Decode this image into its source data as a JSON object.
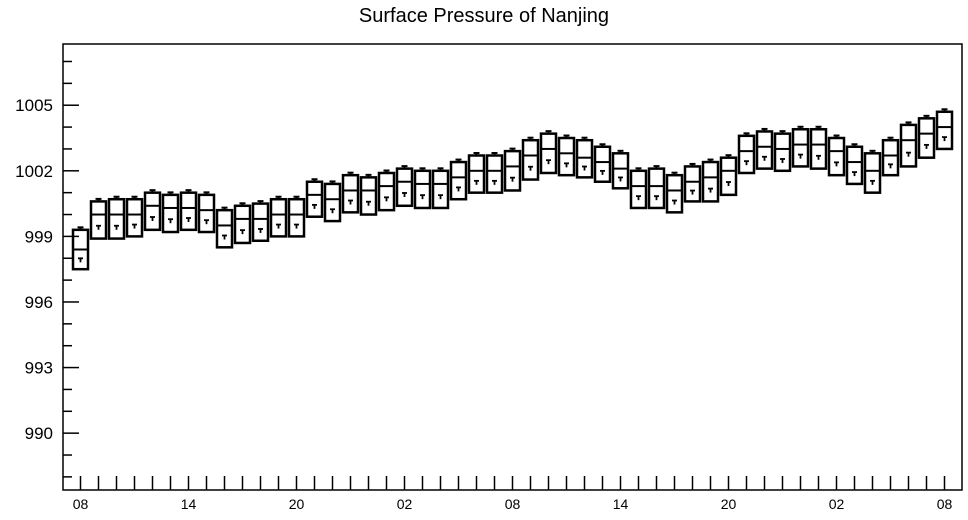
{
  "chart_data": {
    "type": "boxplot",
    "title": "Surface Pressure of Nanjing",
    "xlabel": "",
    "ylabel": "",
    "ylim": [
      987.4,
      1007.8
    ],
    "yticks": [
      990,
      993,
      996,
      999,
      1002,
      1005
    ],
    "yticklabels": [
      "990",
      "993",
      "996",
      "999",
      "1002",
      "1005"
    ],
    "xticklabels": [
      "08",
      "14",
      "20",
      "02",
      "08",
      "14",
      "20",
      "02",
      "08"
    ],
    "xtick_index_step": 6,
    "grid": false,
    "legend": "none",
    "series": [
      {
        "box": [
          [
            997.5,
            998.4,
            999.3
          ],
          [
            998.9,
            1000.0,
            1000.6
          ],
          [
            998.9,
            1000.0,
            1000.7
          ],
          [
            999.0,
            1000.0,
            1000.7
          ],
          [
            999.3,
            1000.4,
            1001.0
          ],
          [
            999.2,
            1000.3,
            1000.9
          ],
          [
            999.3,
            1000.3,
            1001.0
          ],
          [
            999.2,
            1000.2,
            1000.9
          ],
          [
            998.5,
            999.5,
            1000.2
          ],
          [
            998.7,
            999.8,
            1000.4
          ],
          [
            998.8,
            999.8,
            1000.5
          ],
          [
            999.0,
            1000.0,
            1000.7
          ],
          [
            999.0,
            1000.0,
            1000.7
          ],
          [
            999.9,
            1000.9,
            1001.5
          ],
          [
            999.7,
            1000.7,
            1001.4
          ],
          [
            1000.1,
            1001.1,
            1001.8
          ],
          [
            1000.0,
            1001.1,
            1001.7
          ],
          [
            1000.2,
            1001.3,
            1001.9
          ],
          [
            1000.4,
            1001.5,
            1002.1
          ],
          [
            1000.3,
            1001.4,
            1002.0
          ],
          [
            1000.3,
            1001.4,
            1002.0
          ],
          [
            1000.7,
            1001.7,
            1002.4
          ],
          [
            1001.0,
            1002.0,
            1002.7
          ],
          [
            1001.0,
            1002.0,
            1002.7
          ],
          [
            1001.1,
            1002.2,
            1002.9
          ],
          [
            1001.6,
            1002.7,
            1003.4
          ],
          [
            1001.9,
            1003.0,
            1003.7
          ],
          [
            1001.8,
            1002.8,
            1003.5
          ],
          [
            1001.7,
            1002.6,
            1003.4
          ],
          [
            1001.5,
            1002.4,
            1003.1
          ],
          [
            1001.2,
            1002.1,
            1002.8
          ],
          [
            1000.3,
            1001.3,
            1002.0
          ],
          [
            1000.3,
            1001.3,
            1002.1
          ],
          [
            1000.1,
            1001.1,
            1001.8
          ],
          [
            1000.6,
            1001.5,
            1002.2
          ],
          [
            1000.6,
            1001.7,
            1002.4
          ],
          [
            1000.9,
            1002.0,
            1002.6
          ],
          [
            1001.9,
            1002.9,
            1003.6
          ],
          [
            1002.1,
            1003.1,
            1003.8
          ],
          [
            1002.0,
            1003.0,
            1003.7
          ],
          [
            1002.2,
            1003.2,
            1003.9
          ],
          [
            1002.1,
            1003.2,
            1003.9
          ],
          [
            1001.8,
            1002.9,
            1003.5
          ],
          [
            1001.4,
            1002.4,
            1003.1
          ],
          [
            1001.0,
            1002.0,
            1002.8
          ],
          [
            1001.8,
            1002.7,
            1003.4
          ],
          [
            1002.2,
            1003.4,
            1004.1
          ],
          [
            1002.6,
            1003.7,
            1004.4
          ],
          [
            1003.0,
            1004.0,
            1004.7
          ]
        ]
      }
    ]
  }
}
